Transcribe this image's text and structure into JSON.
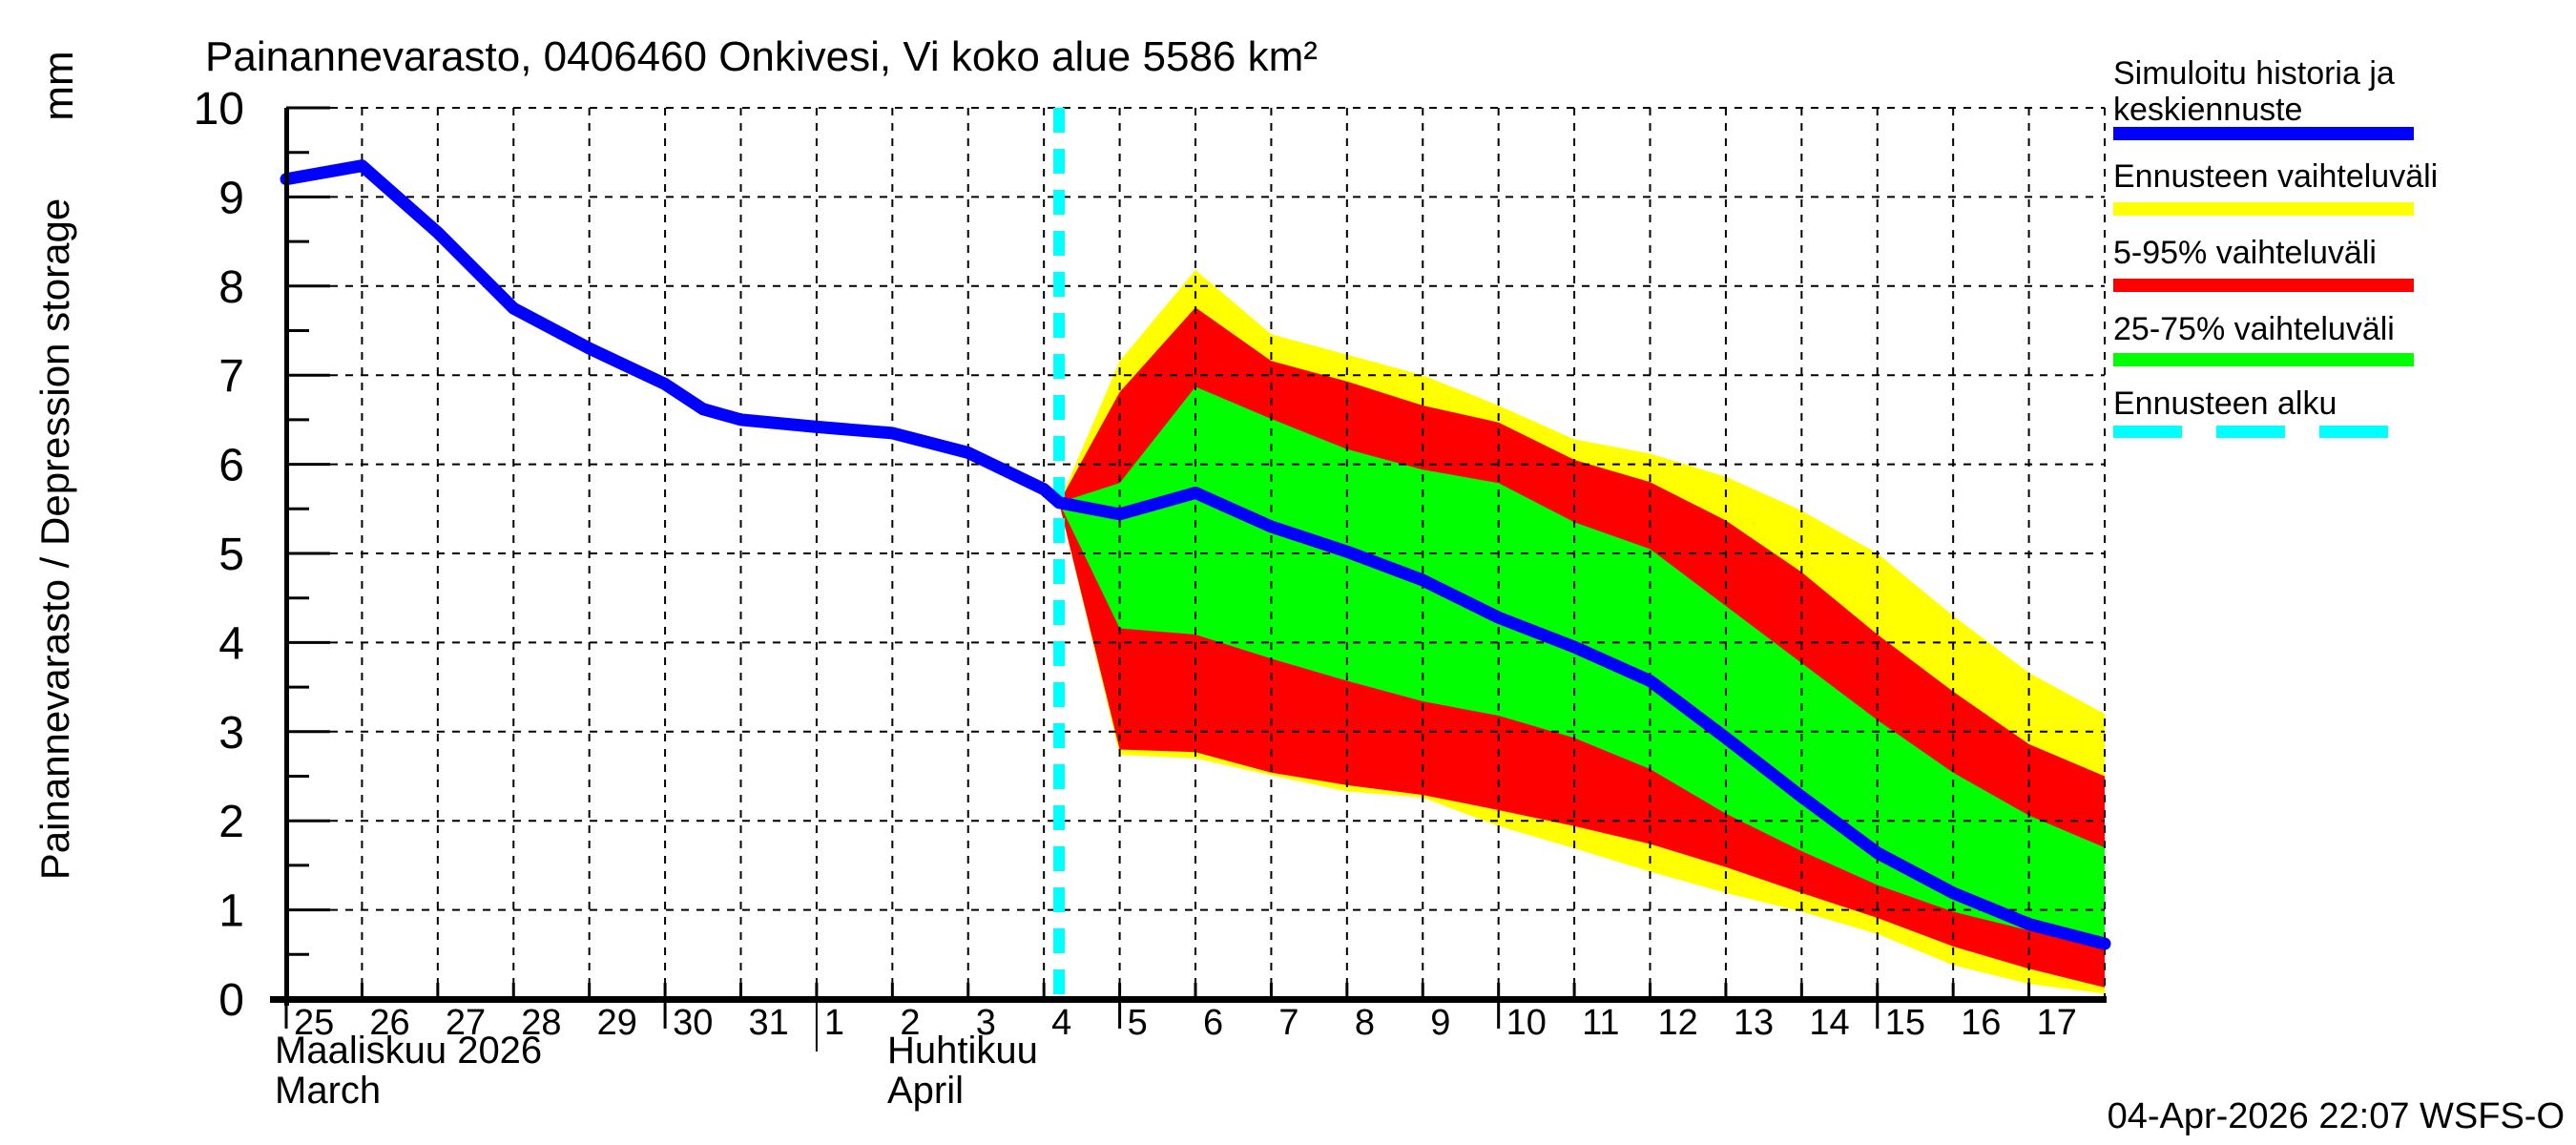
{
  "window": {
    "timestamp": "04-Apr-2026 22:07 WSFS-O"
  },
  "header": {
    "title": "Painannevarasto, 0406460 Onkivesi, Vi koko alue 5586 km²"
  },
  "y_axis": {
    "unit": "mm",
    "label": "Painannevarasto / Depression storage",
    "tick_labels": [
      "0",
      "1",
      "2",
      "3",
      "4",
      "5",
      "6",
      "7",
      "8",
      "9",
      "10"
    ]
  },
  "x_axis": {
    "month_primary_fi": "Maaliskuu 2026",
    "month_primary_en": "March",
    "month_secondary_fi": "Huhtikuu",
    "month_secondary_en": "April",
    "march_days": [
      25,
      26,
      27,
      28,
      29,
      30,
      31
    ],
    "april_days": [
      1,
      2,
      3,
      4,
      5,
      6,
      7,
      8,
      9,
      10,
      11,
      12,
      13,
      14,
      15,
      16,
      17
    ]
  },
  "legend": {
    "items": [
      {
        "label_line1": "Simuloitu historia ja",
        "label_line2": "keskiennuste",
        "color": "#0000ff",
        "style": "solid"
      },
      {
        "label_line1": "Ennusteen vaihteluväli",
        "label_line2": "",
        "color": "#ffff00",
        "style": "solid"
      },
      {
        "label_line1": "5-95% vaihteluväli",
        "label_line2": "",
        "color": "#ff0000",
        "style": "solid"
      },
      {
        "label_line1": "25-75% vaihteluväli",
        "label_line2": "",
        "color": "#00ff00",
        "style": "solid"
      },
      {
        "label_line1": "Ennusteen alku",
        "label_line2": "",
        "color": "#00ffff",
        "style": "dashed"
      }
    ]
  },
  "chart_data": {
    "type": "line",
    "title": "Painannevarasto, 0406460 Onkivesi, Vi koko alue 5586 km²",
    "ylabel": "Painannevarasto / Depression storage",
    "y_unit": "mm",
    "ylim": [
      0,
      10
    ],
    "xlim": [
      0,
      24
    ],
    "x_scale_note": "x = days since 2026-03-25; 0=Mar25 ... 7=Apr1 ... 24=Apr18",
    "grid": true,
    "forecast_start_x": 10.2,
    "forecast_start_line": {
      "label": "Ennusteen alku",
      "color": "#00ffff"
    },
    "history": {
      "label": "Simuloitu historia ja keskiennuste",
      "color": "#0000ff",
      "x": [
        0,
        1,
        2,
        3,
        4,
        5,
        5.5,
        6,
        7,
        8,
        9,
        10,
        10.2
      ],
      "y": [
        9.2,
        9.35,
        8.6,
        7.75,
        7.3,
        6.9,
        6.62,
        6.5,
        6.42,
        6.35,
        6.13,
        5.72,
        5.57
      ]
    },
    "forecast_median": {
      "label": "keskiennuste",
      "color": "#0000ff",
      "x": [
        10.2,
        11,
        12,
        13,
        14,
        15,
        16,
        17,
        18,
        19,
        20,
        21,
        22,
        23,
        24
      ],
      "y": [
        5.57,
        5.44,
        5.68,
        5.3,
        5.02,
        4.7,
        4.28,
        3.95,
        3.57,
        2.93,
        2.27,
        1.64,
        1.19,
        0.84,
        0.62
      ]
    },
    "bands": [
      {
        "label": "Ennusteen vaihteluväli",
        "color": "#ffff00",
        "x": [
          10.2,
          11,
          12,
          13,
          14,
          15,
          16,
          17,
          18,
          19,
          20,
          21,
          22,
          23,
          24
        ],
        "upper": [
          5.57,
          7.16,
          8.18,
          7.46,
          7.23,
          7.0,
          6.66,
          6.28,
          6.12,
          5.86,
          5.48,
          5.0,
          4.3,
          3.66,
          3.2
        ],
        "lower": [
          5.57,
          2.74,
          2.7,
          2.51,
          2.33,
          2.26,
          1.94,
          1.69,
          1.43,
          1.19,
          0.98,
          0.73,
          0.38,
          0.17,
          0.06
        ]
      },
      {
        "label": "5-95% vaihteluväli",
        "color": "#ff0000",
        "x": [
          10.2,
          11,
          12,
          13,
          14,
          15,
          16,
          17,
          18,
          19,
          20,
          21,
          22,
          23,
          24
        ],
        "upper": [
          5.57,
          6.81,
          7.76,
          7.16,
          6.93,
          6.66,
          6.47,
          6.05,
          5.8,
          5.37,
          4.79,
          4.09,
          3.45,
          2.86,
          2.5
        ],
        "lower": [
          5.57,
          2.8,
          2.77,
          2.54,
          2.4,
          2.29,
          2.12,
          1.94,
          1.74,
          1.48,
          1.19,
          0.91,
          0.59,
          0.34,
          0.13
        ]
      },
      {
        "label": "25-75% vaihteluväli",
        "color": "#00ff00",
        "x": [
          10.2,
          11,
          12,
          13,
          14,
          15,
          16,
          17,
          18,
          19,
          20,
          21,
          22,
          23,
          24
        ],
        "upper": [
          5.57,
          5.79,
          6.87,
          6.51,
          6.17,
          5.94,
          5.79,
          5.35,
          5.05,
          4.41,
          3.77,
          3.13,
          2.54,
          2.06,
          1.7
        ],
        "lower": [
          5.57,
          4.16,
          4.09,
          3.82,
          3.57,
          3.34,
          3.18,
          2.93,
          2.58,
          2.08,
          1.66,
          1.28,
          0.98,
          0.77,
          0.66
        ]
      }
    ]
  }
}
